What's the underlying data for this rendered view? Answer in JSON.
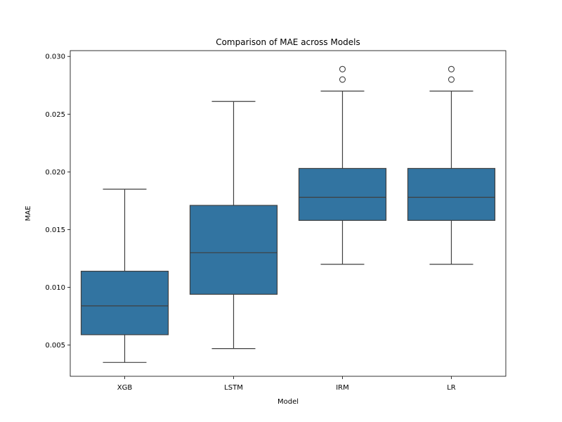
{
  "chart_data": {
    "type": "boxplot",
    "title": "Comparison of MAE across Models",
    "xlabel": "Model",
    "ylabel": "MAE",
    "ylim": [
      0.0023,
      0.0305
    ],
    "yticks": [
      0.005,
      0.01,
      0.015,
      0.02,
      0.025,
      0.03
    ],
    "ytick_labels": [
      "0.005",
      "0.010",
      "0.015",
      "0.020",
      "0.025",
      "0.030"
    ],
    "grid": false,
    "legend": "none",
    "box_color": "#3274a1",
    "line_color": "#3f3f3f",
    "categories": [
      "XGB",
      "LSTM",
      "IRM",
      "LR"
    ],
    "boxes": [
      {
        "category": "XGB",
        "whisker_low": 0.0035,
        "q1": 0.0059,
        "median": 0.0084,
        "q3": 0.0114,
        "whisker_high": 0.0185,
        "outliers": []
      },
      {
        "category": "LSTM",
        "whisker_low": 0.0047,
        "q1": 0.0094,
        "median": 0.013,
        "q3": 0.0171,
        "whisker_high": 0.0261,
        "outliers": []
      },
      {
        "category": "IRM",
        "whisker_low": 0.012,
        "q1": 0.0158,
        "median": 0.0178,
        "q3": 0.0203,
        "whisker_high": 0.027,
        "outliers": [
          0.028,
          0.0289
        ]
      },
      {
        "category": "LR",
        "whisker_low": 0.012,
        "q1": 0.0158,
        "median": 0.0178,
        "q3": 0.0203,
        "whisker_high": 0.027,
        "outliers": [
          0.028,
          0.0289
        ]
      }
    ]
  }
}
